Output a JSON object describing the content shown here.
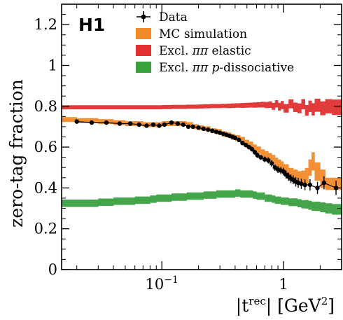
{
  "chart_data": {
    "type": "scatter",
    "logo": "H1",
    "ylabel": "zero-tag fraction",
    "xlabel_main": "|t",
    "xlabel_sup": "rec",
    "xlabel_units_open": "| [GeV",
    "xlabel_units_sup": "2",
    "xlabel_units_close": "]",
    "xscale": "log",
    "xlim": [
      0.015,
      3.0
    ],
    "ylim": [
      0,
      1.3
    ],
    "y_ticks": [
      0,
      0.2,
      0.4,
      0.6,
      0.8,
      1,
      1.2
    ],
    "y_tick_labels": [
      "0",
      "0.2",
      "0.4",
      "0.6",
      "0.8",
      "1",
      "1.2"
    ],
    "x_tick_base": "10",
    "x_tick_exp": "−1",
    "x_tick_one": "1",
    "legend_position": "top-right",
    "series": [
      {
        "name": "Data",
        "kind": "points",
        "color": "#000000",
        "x": [
          0.02,
          0.0265,
          0.035,
          0.045,
          0.055,
          0.065,
          0.075,
          0.085,
          0.095,
          0.105,
          0.12,
          0.135,
          0.15,
          0.165,
          0.18,
          0.2,
          0.22,
          0.24,
          0.26,
          0.28,
          0.3,
          0.32,
          0.34,
          0.36,
          0.38,
          0.4,
          0.43,
          0.46,
          0.49,
          0.52,
          0.55,
          0.58,
          0.61,
          0.65,
          0.7,
          0.75,
          0.8,
          0.85,
          0.9,
          0.95,
          1.0,
          1.05,
          1.1,
          1.15,
          1.2,
          1.26,
          1.32,
          1.4,
          1.5,
          1.65,
          1.9,
          2.15,
          2.7
        ],
        "y": [
          0.725,
          0.72,
          0.72,
          0.715,
          0.715,
          0.71,
          0.705,
          0.71,
          0.705,
          0.71,
          0.72,
          0.715,
          0.71,
          0.7,
          0.7,
          0.695,
          0.69,
          0.685,
          0.68,
          0.675,
          0.67,
          0.665,
          0.66,
          0.655,
          0.65,
          0.645,
          0.635,
          0.62,
          0.61,
          0.6,
          0.59,
          0.575,
          0.56,
          0.55,
          0.54,
          0.535,
          0.52,
          0.5,
          0.49,
          0.485,
          0.48,
          0.465,
          0.455,
          0.445,
          0.44,
          0.43,
          0.425,
          0.42,
          0.415,
          0.415,
          0.4,
          0.425,
          0.4
        ],
        "yerr": [
          0.006,
          0.006,
          0.006,
          0.006,
          0.006,
          0.006,
          0.006,
          0.006,
          0.006,
          0.006,
          0.006,
          0.006,
          0.006,
          0.006,
          0.006,
          0.007,
          0.007,
          0.007,
          0.007,
          0.007,
          0.008,
          0.008,
          0.008,
          0.009,
          0.009,
          0.009,
          0.01,
          0.01,
          0.011,
          0.011,
          0.012,
          0.012,
          0.013,
          0.013,
          0.014,
          0.015,
          0.016,
          0.016,
          0.017,
          0.018,
          0.019,
          0.02,
          0.02,
          0.021,
          0.022,
          0.023,
          0.024,
          0.025,
          0.026,
          0.028,
          0.03,
          0.032,
          0.035
        ]
      },
      {
        "name": "MC simulation",
        "kind": "band",
        "color": "#f28a2a",
        "edges": [
          0.015,
          0.02,
          0.03,
          0.04,
          0.05,
          0.06,
          0.07,
          0.08,
          0.09,
          0.1,
          0.12,
          0.14,
          0.16,
          0.18,
          0.2,
          0.22,
          0.25,
          0.28,
          0.31,
          0.34,
          0.37,
          0.4,
          0.44,
          0.48,
          0.52,
          0.56,
          0.6,
          0.65,
          0.7,
          0.75,
          0.8,
          0.85,
          0.9,
          0.95,
          1.0,
          1.1,
          1.2,
          1.3,
          1.4,
          1.5,
          1.6,
          1.7,
          1.8,
          2.0,
          2.2,
          2.5,
          3.0
        ],
        "y": [
          0.735,
          0.73,
          0.725,
          0.72,
          0.715,
          0.715,
          0.71,
          0.71,
          0.71,
          0.715,
          0.715,
          0.715,
          0.71,
          0.7,
          0.695,
          0.69,
          0.68,
          0.675,
          0.665,
          0.66,
          0.65,
          0.645,
          0.635,
          0.62,
          0.61,
          0.595,
          0.585,
          0.57,
          0.56,
          0.55,
          0.54,
          0.525,
          0.515,
          0.505,
          0.49,
          0.47,
          0.46,
          0.45,
          0.45,
          0.46,
          0.5,
          0.53,
          0.48,
          0.445,
          0.42,
          0.42
        ],
        "half": [
          0.012,
          0.012,
          0.012,
          0.012,
          0.012,
          0.012,
          0.012,
          0.012,
          0.012,
          0.012,
          0.012,
          0.012,
          0.012,
          0.012,
          0.012,
          0.012,
          0.012,
          0.013,
          0.013,
          0.013,
          0.014,
          0.014,
          0.015,
          0.016,
          0.017,
          0.018,
          0.018,
          0.019,
          0.02,
          0.021,
          0.022,
          0.023,
          0.024,
          0.025,
          0.026,
          0.028,
          0.03,
          0.032,
          0.035,
          0.038,
          0.04,
          0.045,
          0.045,
          0.045,
          0.03,
          0.03
        ]
      },
      {
        "name": "Excl. ππ elastic",
        "kind": "band",
        "color": "#e03030",
        "edges": [
          0.015,
          0.02,
          0.03,
          0.04,
          0.05,
          0.06,
          0.07,
          0.08,
          0.09,
          0.1,
          0.12,
          0.14,
          0.16,
          0.18,
          0.2,
          0.22,
          0.25,
          0.28,
          0.31,
          0.34,
          0.37,
          0.4,
          0.44,
          0.48,
          0.52,
          0.56,
          0.6,
          0.65,
          0.7,
          0.75,
          0.8,
          0.85,
          0.9,
          0.95,
          1.0,
          1.1,
          1.2,
          1.3,
          1.4,
          1.5,
          1.6,
          1.7,
          1.8,
          2.0,
          2.2,
          2.5,
          3.0
        ],
        "y": [
          0.795,
          0.795,
          0.795,
          0.795,
          0.795,
          0.795,
          0.795,
          0.795,
          0.795,
          0.796,
          0.797,
          0.797,
          0.798,
          0.798,
          0.799,
          0.8,
          0.801,
          0.801,
          0.802,
          0.802,
          0.803,
          0.804,
          0.804,
          0.805,
          0.806,
          0.806,
          0.807,
          0.808,
          0.806,
          0.808,
          0.8,
          0.812,
          0.798,
          0.806,
          0.79,
          0.812,
          0.795,
          0.79,
          0.81,
          0.78,
          0.8,
          0.785,
          0.805,
          0.79,
          0.8,
          0.795
        ],
        "half": [
          0.01,
          0.01,
          0.01,
          0.01,
          0.01,
          0.01,
          0.01,
          0.01,
          0.01,
          0.01,
          0.01,
          0.01,
          0.01,
          0.01,
          0.01,
          0.01,
          0.01,
          0.01,
          0.01,
          0.011,
          0.011,
          0.011,
          0.012,
          0.012,
          0.012,
          0.013,
          0.013,
          0.014,
          0.015,
          0.016,
          0.017,
          0.018,
          0.019,
          0.02,
          0.021,
          0.022,
          0.023,
          0.024,
          0.025,
          0.026,
          0.028,
          0.03,
          0.032,
          0.034,
          0.035,
          0.038
        ]
      },
      {
        "name": "Excl. ππ p-dissociative",
        "kind": "band",
        "color": "#3aa040",
        "edges": [
          0.015,
          0.02,
          0.03,
          0.04,
          0.05,
          0.06,
          0.07,
          0.08,
          0.09,
          0.1,
          0.12,
          0.14,
          0.16,
          0.18,
          0.2,
          0.22,
          0.25,
          0.28,
          0.31,
          0.34,
          0.37,
          0.4,
          0.44,
          0.48,
          0.52,
          0.56,
          0.6,
          0.65,
          0.7,
          0.75,
          0.8,
          0.85,
          0.9,
          0.95,
          1.0,
          1.1,
          1.2,
          1.3,
          1.4,
          1.5,
          1.6,
          1.7,
          1.8,
          2.0,
          2.2,
          2.5,
          3.0
        ],
        "y": [
          0.325,
          0.325,
          0.33,
          0.335,
          0.335,
          0.34,
          0.34,
          0.345,
          0.35,
          0.35,
          0.355,
          0.355,
          0.36,
          0.36,
          0.36,
          0.365,
          0.365,
          0.37,
          0.37,
          0.37,
          0.37,
          0.375,
          0.37,
          0.37,
          0.37,
          0.365,
          0.36,
          0.36,
          0.35,
          0.35,
          0.345,
          0.34,
          0.34,
          0.335,
          0.335,
          0.33,
          0.33,
          0.325,
          0.32,
          0.32,
          0.315,
          0.31,
          0.31,
          0.305,
          0.3,
          0.295
        ],
        "half": [
          0.018,
          0.018,
          0.018,
          0.018,
          0.018,
          0.018,
          0.018,
          0.018,
          0.018,
          0.018,
          0.018,
          0.018,
          0.018,
          0.018,
          0.018,
          0.018,
          0.018,
          0.018,
          0.018,
          0.018,
          0.018,
          0.018,
          0.018,
          0.018,
          0.018,
          0.018,
          0.018,
          0.018,
          0.018,
          0.018,
          0.018,
          0.018,
          0.018,
          0.018,
          0.018,
          0.019,
          0.019,
          0.02,
          0.02,
          0.021,
          0.022,
          0.022,
          0.023,
          0.024,
          0.025,
          0.026
        ]
      }
    ],
    "legend": [
      {
        "label_parts": [
          "Data"
        ],
        "kind": "points",
        "color": "#000000"
      },
      {
        "label_parts": [
          "MC simulation"
        ],
        "kind": "band",
        "color": "#f28a2a"
      },
      {
        "label_parts": [
          "Excl. ",
          "ππ",
          " elastic"
        ],
        "kind": "band",
        "color": "#e03030"
      },
      {
        "label_parts": [
          "Excl. ",
          "ππ",
          " ",
          "p",
          "-dissociative"
        ],
        "kind": "band",
        "color": "#3aa040"
      }
    ]
  }
}
